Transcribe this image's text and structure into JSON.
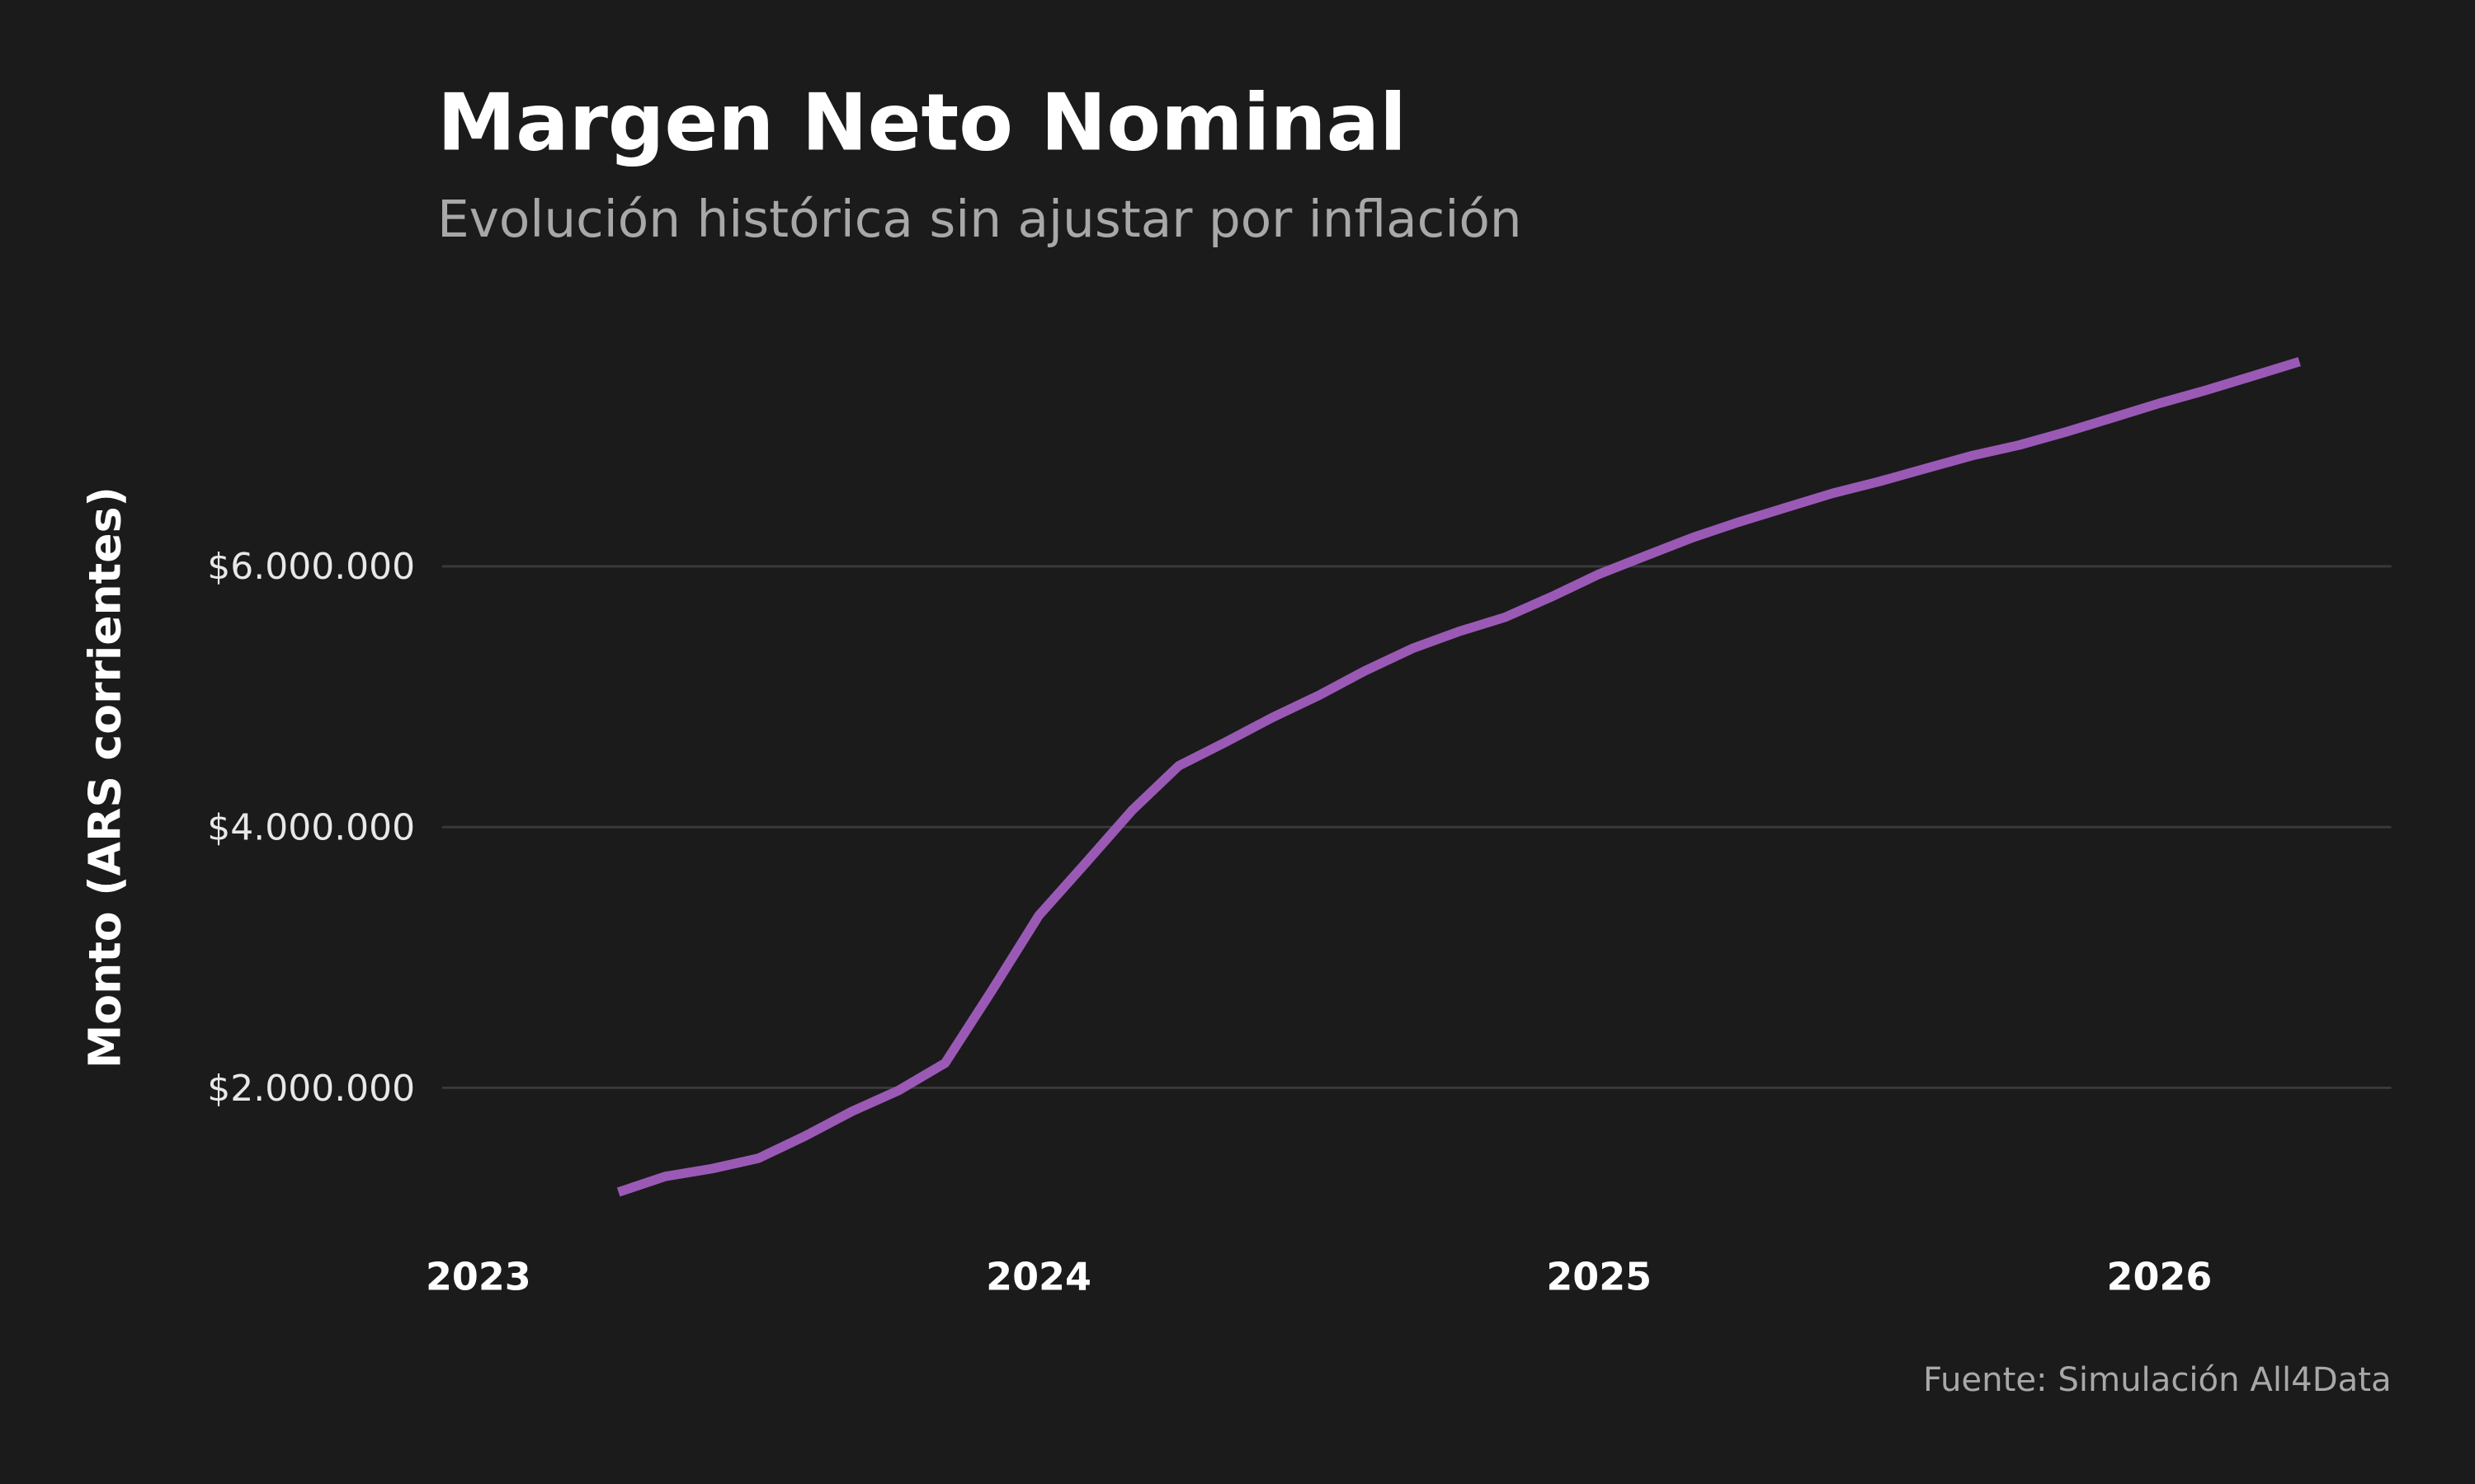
{
  "chart_data": {
    "type": "line",
    "title": "Margen Neto Nominal",
    "subtitle": "Evolución histórica sin ajustar por inflación",
    "y_label": "Monto (ARS corrientes)",
    "source": "Fuente: Simulación All4Data",
    "x": [
      2023.25,
      2023.333,
      2023.417,
      2023.5,
      2023.583,
      2023.667,
      2023.75,
      2023.833,
      2023.917,
      2024.0,
      2024.083,
      2024.167,
      2024.25,
      2024.333,
      2024.417,
      2024.5,
      2024.583,
      2024.667,
      2024.75,
      2024.833,
      2024.917,
      2025.0,
      2025.083,
      2025.167,
      2025.25,
      2025.333,
      2025.417,
      2025.5,
      2025.583,
      2025.667,
      2025.75,
      2025.833,
      2025.917,
      2026.0,
      2026.083,
      2026.167,
      2026.25
    ],
    "series": [
      {
        "name": "Margen Neto",
        "color": "#9b59b6",
        "values": [
          1200000,
          1320000,
          1380000,
          1460000,
          1630000,
          1820000,
          1980000,
          2190000,
          2750000,
          3320000,
          3720000,
          4130000,
          4470000,
          4650000,
          4840000,
          5010000,
          5200000,
          5370000,
          5500000,
          5610000,
          5770000,
          5940000,
          6080000,
          6220000,
          6340000,
          6450000,
          6560000,
          6650000,
          6750000,
          6850000,
          6930000,
          7030000,
          7140000,
          7250000,
          7350000,
          7460000,
          7570000
        ]
      }
    ],
    "xlim": [
      2022.935,
      2026.414
    ],
    "xticks": [
      2023,
      2024,
      2025,
      2026
    ],
    "ylim": [
      800000,
      7900000
    ],
    "yticks": [
      {
        "value": 2000000,
        "label": "$2.000.000"
      },
      {
        "value": 4000000,
        "label": "$4.000.000"
      },
      {
        "value": 6000000,
        "label": "$6.000.000"
      }
    ],
    "grid": true
  }
}
